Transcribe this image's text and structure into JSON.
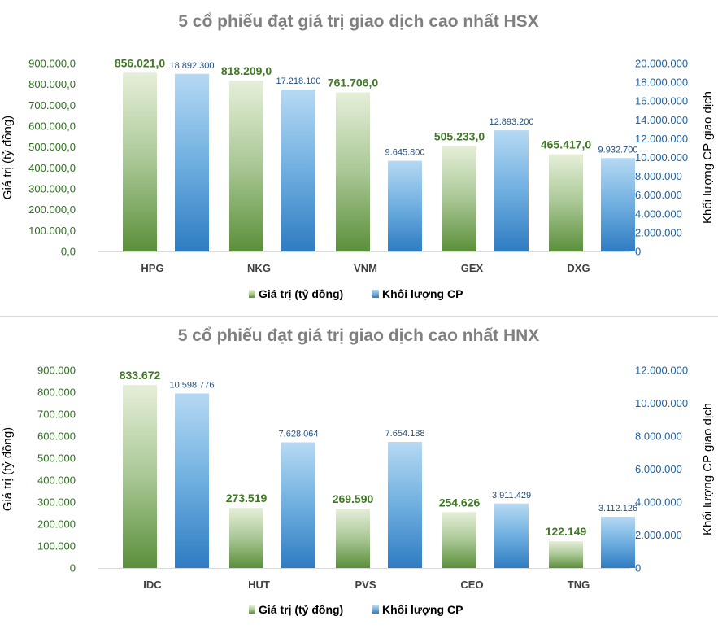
{
  "colors": {
    "series1_top": "#e6efd9",
    "series1_bottom": "#5b8f3a",
    "series2_top": "#b6d9f3",
    "series2_bottom": "#2f7cc2",
    "left_axis_text": "#2e6e1f",
    "right_axis_text": "#1f5f9c",
    "title_text": "#7f7f7f"
  },
  "chart_data": [
    {
      "type": "bar",
      "title": "5 cổ phiếu đạt giá trị giao dịch cao nhất HSX",
      "categories": [
        "HPG",
        "NKG",
        "VNM",
        "GEX",
        "DXG"
      ],
      "ylabel": "Giá trị (tỷ đồng)",
      "y2label": "Khối lượng CP giao dịch",
      "ylim": [
        0,
        900000
      ],
      "y2lim": [
        0,
        20000000
      ],
      "yticks": [
        "0,0",
        "100.000,0",
        "200.000,0",
        "300.000,0",
        "400.000,0",
        "500.000,0",
        "600.000,0",
        "700.000,0",
        "800.000,0",
        "900.000,0"
      ],
      "y2ticks": [
        "0",
        "2.000.000",
        "4.000.000",
        "6.000.000",
        "8.000.000",
        "10.000.000",
        "12.000.000",
        "14.000.000",
        "16.000.000",
        "18.000.000",
        "20.000.000"
      ],
      "series": [
        {
          "name": "Giá trị (tỷ đồng)",
          "axis": "left",
          "values": [
            856021,
            818209,
            761706,
            505233,
            465417
          ],
          "labels": [
            "856.021,0",
            "818.209,0",
            "761.706,0",
            "505.233,0",
            "465.417,0"
          ]
        },
        {
          "name": "Khối lượng CP",
          "axis": "right",
          "values": [
            18892300,
            17218100,
            9645800,
            12893200,
            9932700
          ],
          "labels": [
            "18.892.300",
            "17.218.100",
            "9.645.800",
            "12.893.200",
            "9.932.700"
          ]
        }
      ],
      "legend": "bottom",
      "grid": false
    },
    {
      "type": "bar",
      "title": "5 cổ phiếu đạt giá trị giao dịch cao nhất HNX",
      "categories": [
        "IDC",
        "HUT",
        "PVS",
        "CEO",
        "TNG"
      ],
      "ylabel": "Giá trị (tỷ đồng)",
      "y2label": "Khối lượng CP giao dịch",
      "ylim": [
        0,
        900000
      ],
      "y2lim": [
        0,
        12000000
      ],
      "yticks": [
        "0",
        "100.000",
        "200.000",
        "300.000",
        "400.000",
        "500.000",
        "600.000",
        "700.000",
        "800.000",
        "900.000"
      ],
      "y2ticks": [
        "0",
        "2.000.000",
        "4.000.000",
        "6.000.000",
        "8.000.000",
        "10.000.000",
        "12.000.000"
      ],
      "series": [
        {
          "name": "Giá trị (tỷ đồng)",
          "axis": "left",
          "values": [
            833672,
            273519,
            269590,
            254626,
            122149
          ],
          "labels": [
            "833.672",
            "273.519",
            "269.590",
            "254.626",
            "122.149"
          ]
        },
        {
          "name": "Khối lượng CP",
          "axis": "right",
          "values": [
            10598776,
            7628064,
            7654188,
            3911429,
            3112126
          ],
          "labels": [
            "10.598.776",
            "7.628.064",
            "7.654.188",
            "3.911.429",
            "3.112.126"
          ]
        }
      ],
      "legend": "bottom",
      "grid": false
    }
  ]
}
